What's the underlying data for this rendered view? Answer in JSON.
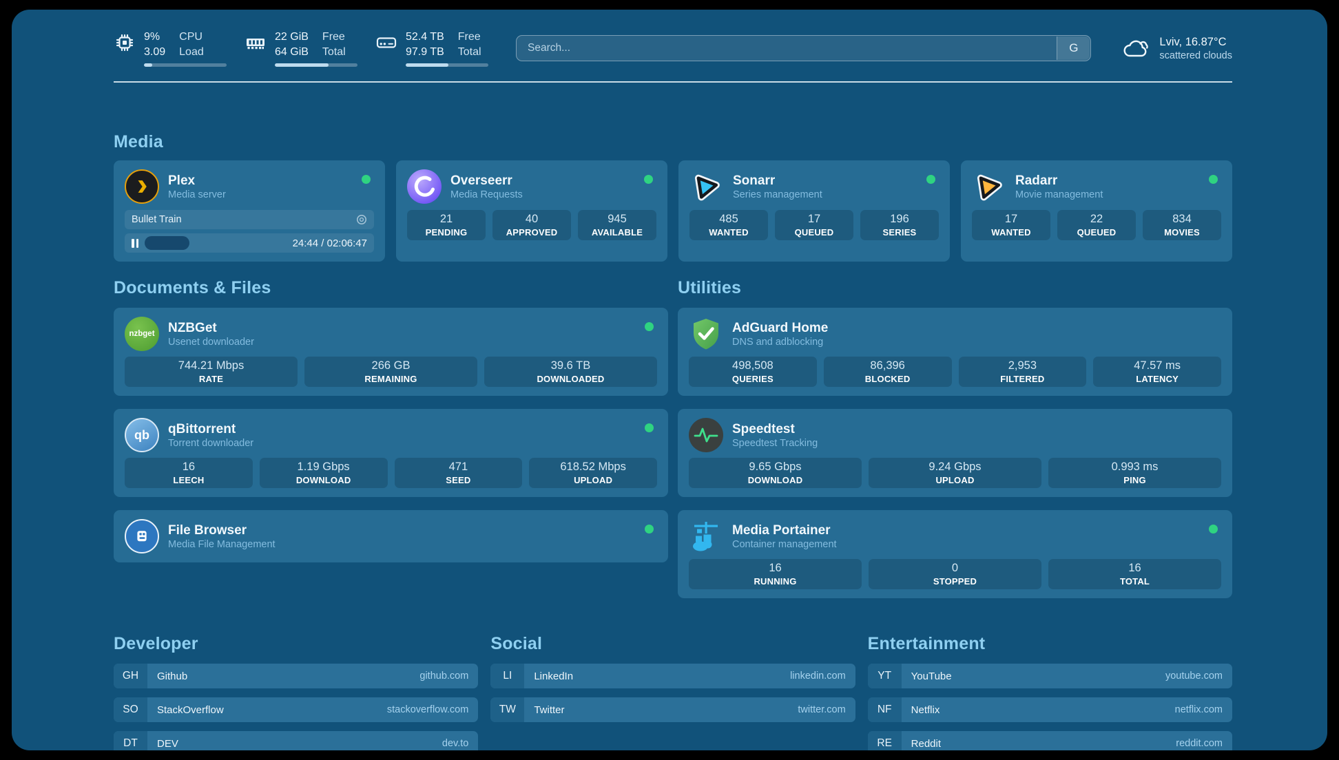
{
  "colors": {
    "background": "#000000",
    "panel": "#11527a",
    "card": "#266c94",
    "status_online": "#2fd381",
    "section_title": "#8fd0f1"
  },
  "topbar": {
    "resources": [
      {
        "name": "cpu",
        "line1_value": "9%",
        "line2_value": "3.09",
        "line1_label": "CPU",
        "line2_label": "Load",
        "progress": 10
      },
      {
        "name": "memory",
        "line1_value": "22 GiB",
        "line2_value": "64 GiB",
        "line1_label": "Free",
        "line2_label": "Total",
        "progress": 65
      },
      {
        "name": "disk",
        "line1_value": "52.4 TB",
        "line2_value": "97.9 TB",
        "line1_label": "Free",
        "line2_label": "Total",
        "progress": 52
      }
    ],
    "search": {
      "placeholder": "Search...",
      "button_label": "G"
    },
    "weather": {
      "location_temp": "Lviv, 16.87°C",
      "condition": "scattered clouds"
    }
  },
  "media": {
    "title": "Media",
    "plex": {
      "name": "Plex",
      "subtitle": "Media server",
      "online": true,
      "now_playing": {
        "title": "Bullet Train",
        "time_display": "24:44 / 02:06:47",
        "progress": 19,
        "state": "paused"
      }
    },
    "cards": [
      {
        "name": "Overseerr",
        "subtitle": "Media Requests",
        "online": true,
        "stats": [
          {
            "value": "21",
            "label": "PENDING"
          },
          {
            "value": "40",
            "label": "APPROVED"
          },
          {
            "value": "945",
            "label": "AVAILABLE"
          }
        ]
      },
      {
        "name": "Sonarr",
        "subtitle": "Series management",
        "online": true,
        "stats": [
          {
            "value": "485",
            "label": "WANTED"
          },
          {
            "value": "17",
            "label": "QUEUED"
          },
          {
            "value": "196",
            "label": "SERIES"
          }
        ]
      },
      {
        "name": "Radarr",
        "subtitle": "Movie management",
        "online": true,
        "stats": [
          {
            "value": "17",
            "label": "WANTED"
          },
          {
            "value": "22",
            "label": "QUEUED"
          },
          {
            "value": "834",
            "label": "MOVIES"
          }
        ]
      }
    ]
  },
  "documents": {
    "title": "Documents & Files",
    "cards": [
      {
        "name": "NZBGet",
        "subtitle": "Usenet downloader",
        "online": true,
        "stats": [
          {
            "value": "744.21 Mbps",
            "label": "RATE"
          },
          {
            "value": "266 GB",
            "label": "REMAINING"
          },
          {
            "value": "39.6 TB",
            "label": "DOWNLOADED"
          }
        ]
      },
      {
        "name": "qBittorrent",
        "subtitle": "Torrent downloader",
        "online": true,
        "stats": [
          {
            "value": "16",
            "label": "LEECH"
          },
          {
            "value": "1.19 Gbps",
            "label": "DOWNLOAD"
          },
          {
            "value": "471",
            "label": "SEED"
          },
          {
            "value": "618.52 Mbps",
            "label": "UPLOAD"
          }
        ]
      },
      {
        "name": "File Browser",
        "subtitle": "Media File Management",
        "online": true,
        "stats": []
      }
    ]
  },
  "utilities": {
    "title": "Utilities",
    "cards": [
      {
        "name": "AdGuard Home",
        "subtitle": "DNS and adblocking",
        "stats": [
          {
            "value": "498,508",
            "label": "QUERIES"
          },
          {
            "value": "86,396",
            "label": "BLOCKED"
          },
          {
            "value": "2,953",
            "label": "FILTERED"
          },
          {
            "value": "47.57 ms",
            "label": "LATENCY"
          }
        ]
      },
      {
        "name": "Speedtest",
        "subtitle": "Speedtest Tracking",
        "stats": [
          {
            "value": "9.65 Gbps",
            "label": "DOWNLOAD"
          },
          {
            "value": "9.24 Gbps",
            "label": "UPLOAD"
          },
          {
            "value": "0.993 ms",
            "label": "PING"
          }
        ]
      },
      {
        "name": "Media Portainer",
        "subtitle": "Container management",
        "online": true,
        "stats": [
          {
            "value": "16",
            "label": "RUNNING"
          },
          {
            "value": "0",
            "label": "STOPPED"
          },
          {
            "value": "16",
            "label": "TOTAL"
          }
        ]
      }
    ]
  },
  "bookmarks": [
    {
      "title": "Developer",
      "items": [
        {
          "abbr": "GH",
          "name": "Github",
          "url": "github.com"
        },
        {
          "abbr": "SO",
          "name": "StackOverflow",
          "url": "stackoverflow.com"
        },
        {
          "abbr": "DT",
          "name": "DEV",
          "url": "dev.to"
        }
      ]
    },
    {
      "title": "Social",
      "items": [
        {
          "abbr": "LI",
          "name": "LinkedIn",
          "url": "linkedin.com"
        },
        {
          "abbr": "TW",
          "name": "Twitter",
          "url": "twitter.com"
        }
      ]
    },
    {
      "title": "Entertainment",
      "items": [
        {
          "abbr": "YT",
          "name": "YouTube",
          "url": "youtube.com"
        },
        {
          "abbr": "NF",
          "name": "Netflix",
          "url": "netflix.com"
        },
        {
          "abbr": "RE",
          "name": "Reddit",
          "url": "reddit.com"
        }
      ]
    }
  ]
}
